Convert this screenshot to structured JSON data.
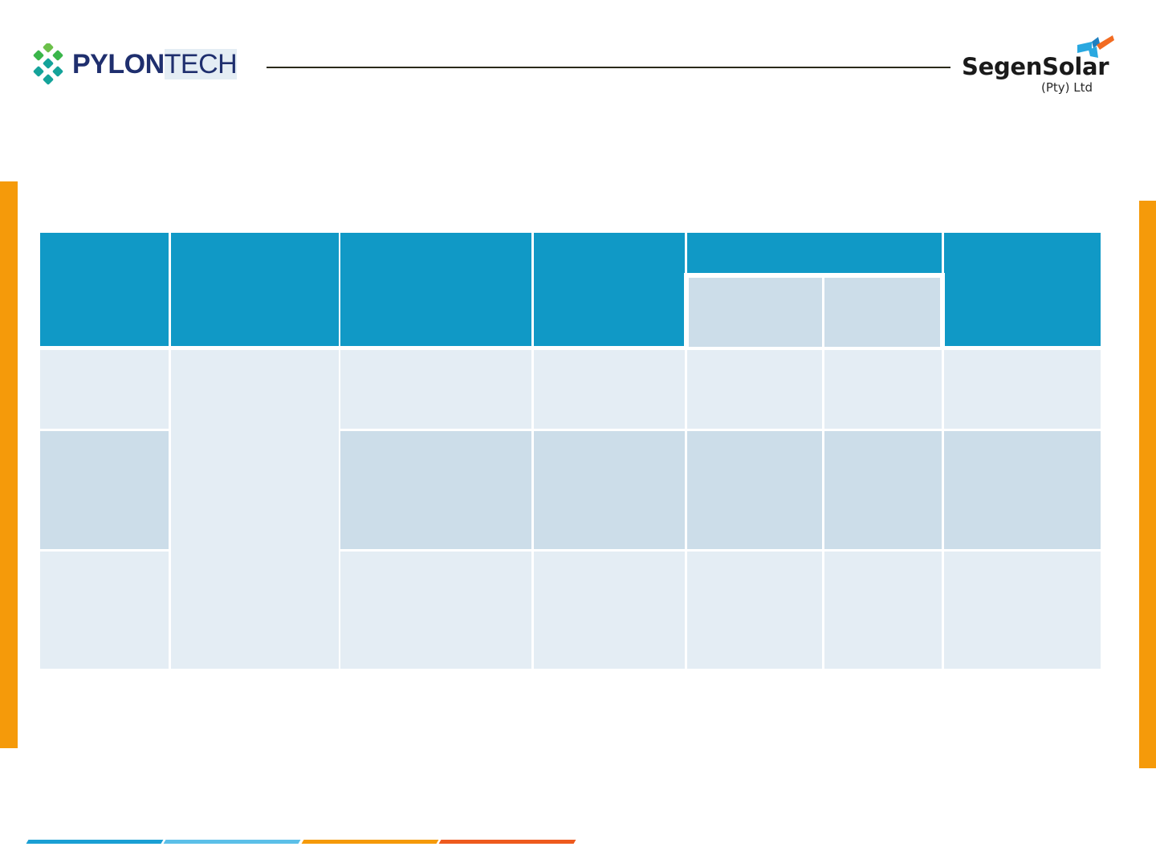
{
  "header": {
    "left_logo": {
      "name": "pylontech-logo",
      "text_bold": "PYLON",
      "text_light": "TECH",
      "brand_color": "#1f2f6e",
      "mark_colors": [
        "#3ab54a",
        "#14a39a",
        "#6cc04a"
      ]
    },
    "right_logo": {
      "name": "segen-solar-logo",
      "text": "SegenSolar",
      "subtext": "(Pty) Ltd",
      "mark_colors": [
        "#29a8e0",
        "#f26b21"
      ]
    },
    "rule_color": "#2b2a1a"
  },
  "accent_bars": {
    "color": "#f59a0a"
  },
  "table": {
    "header_color": "#1099c6",
    "subheader_color": "#ccdde9",
    "row_light_color": "#e4edf4",
    "row_mid_color": "#ccdde9",
    "columns": 7,
    "rows": [
      {
        "band": "light",
        "cells": [
          "",
          "",
          "",
          "",
          "",
          "",
          ""
        ]
      },
      {
        "band": "mid",
        "cells": [
          "",
          "",
          "",
          "",
          "",
          "",
          ""
        ]
      },
      {
        "band": "light",
        "cells": [
          "",
          "",
          "",
          "",
          "",
          "",
          ""
        ]
      }
    ]
  },
  "footer_stripes": {
    "colors": [
      "#1a9fd4",
      "#5bbfe8",
      "#f59a0a",
      "#ee5a1e"
    ]
  }
}
